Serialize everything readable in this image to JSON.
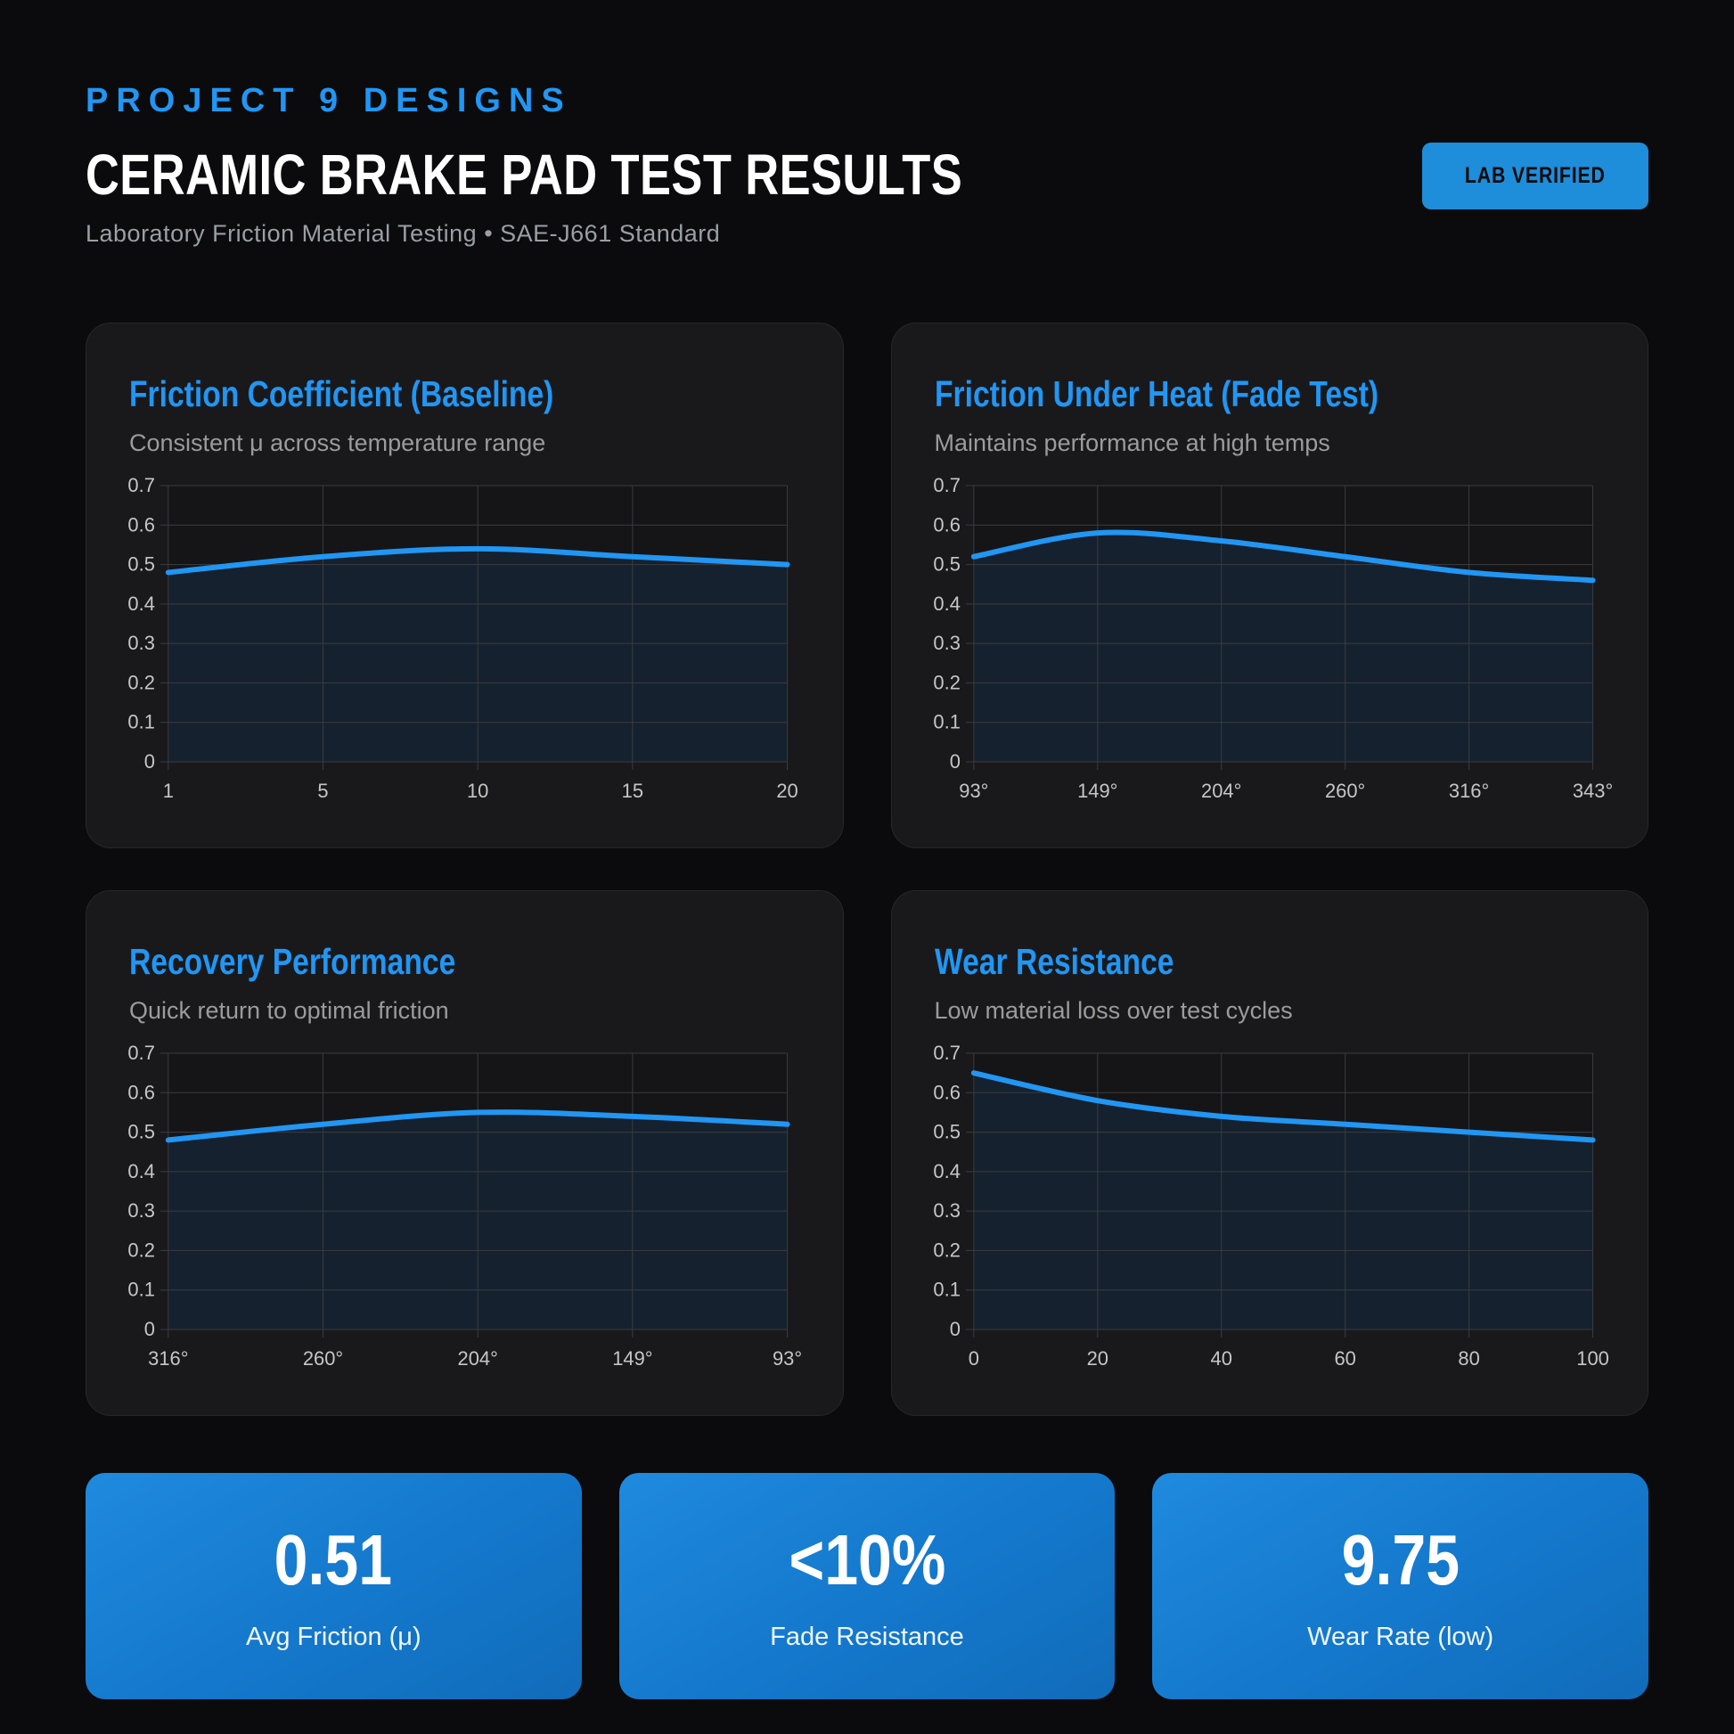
{
  "header": {
    "brand": "PROJECT 9 DESIGNS",
    "title": "CERAMIC BRAKE PAD TEST RESULTS",
    "subtitle": "Laboratory Friction Material Testing • SAE-J661 Standard",
    "badge_label": "LAB VERIFIED"
  },
  "colors": {
    "accent": "#2196f3",
    "page_bg": "#0b0b0d",
    "card_bg": "#19191c",
    "badge_bg": "#1e8dda",
    "grid_line": "#3b3c40",
    "axis_text": "#c6c6c6",
    "line": "#2196f3",
    "area_fill": "rgba(33,150,243,0.10)",
    "plot_bg": "#151518",
    "stat_gradient_start": "#1f8ade",
    "stat_gradient_end": "#116cba"
  },
  "chart_data": [
    {
      "type": "area",
      "title": "Friction Coefficient (Baseline)",
      "subtitle": "Consistent μ across temperature range",
      "categories": [
        "1",
        "5",
        "10",
        "15",
        "20"
      ],
      "values": [
        0.48,
        0.52,
        0.54,
        0.52,
        0.5
      ],
      "xlabel": "",
      "ylabel": "",
      "ylim": [
        0,
        0.7
      ],
      "ytick_step": 0.1,
      "grid": true,
      "legend": false
    },
    {
      "type": "area",
      "title": "Friction Under Heat (Fade Test)",
      "subtitle": "Maintains performance at high temps",
      "categories": [
        "93°",
        "149°",
        "204°",
        "260°",
        "316°",
        "343°"
      ],
      "values": [
        0.52,
        0.58,
        0.56,
        0.52,
        0.48,
        0.46
      ],
      "xlabel": "",
      "ylabel": "",
      "ylim": [
        0,
        0.7
      ],
      "ytick_step": 0.1,
      "grid": true,
      "legend": false
    },
    {
      "type": "area",
      "title": "Recovery Performance",
      "subtitle": "Quick return to optimal friction",
      "categories": [
        "316°",
        "260°",
        "204°",
        "149°",
        "93°"
      ],
      "values": [
        0.48,
        0.52,
        0.55,
        0.54,
        0.52
      ],
      "xlabel": "",
      "ylabel": "",
      "ylim": [
        0,
        0.7
      ],
      "ytick_step": 0.1,
      "grid": true,
      "legend": false
    },
    {
      "type": "area",
      "title": "Wear Resistance",
      "subtitle": "Low material loss over test cycles",
      "categories": [
        "0",
        "20",
        "40",
        "60",
        "80",
        "100"
      ],
      "values": [
        0.65,
        0.58,
        0.54,
        0.52,
        0.5,
        0.48
      ],
      "xlabel": "",
      "ylabel": "",
      "ylim": [
        0,
        0.7
      ],
      "ytick_step": 0.1,
      "grid": true,
      "legend": false
    }
  ],
  "stats": [
    {
      "value": "0.51",
      "label": "Avg Friction (μ)"
    },
    {
      "value": "<10%",
      "label": "Fade Resistance"
    },
    {
      "value": "9.75",
      "label": "Wear Rate (low)"
    }
  ]
}
